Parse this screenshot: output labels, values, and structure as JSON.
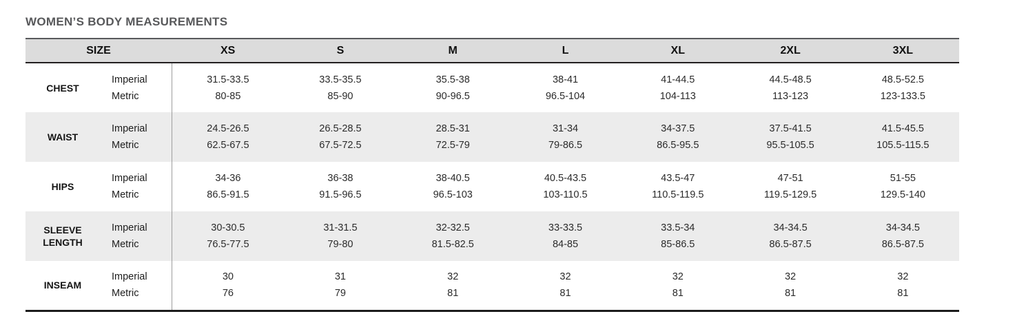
{
  "page": {
    "title": "WOMEN’S BODY MEASUREMENTS"
  },
  "colors": {
    "header_bg": "#dcdcdc",
    "stripe_bg": "#ececec",
    "border_top": "#58595b",
    "border_dark": "#231f20",
    "column_divider": "#9d9d9d",
    "title_text": "#58595b"
  },
  "table": {
    "size_header": "SIZE",
    "sizes": [
      "XS",
      "S",
      "M",
      "L",
      "XL",
      "2XL",
      "3XL"
    ],
    "unit_labels": [
      "Imperial",
      "Metric"
    ],
    "rows": [
      {
        "name": "CHEST",
        "imperial": [
          "31.5-33.5",
          "33.5-35.5",
          "35.5-38",
          "38-41",
          "41-44.5",
          "44.5-48.5",
          "48.5-52.5"
        ],
        "metric": [
          "80-85",
          "85-90",
          "90-96.5",
          "96.5-104",
          "104-113",
          "113-123",
          "123-133.5"
        ]
      },
      {
        "name": "WAIST",
        "imperial": [
          "24.5-26.5",
          "26.5-28.5",
          "28.5-31",
          "31-34",
          "34-37.5",
          "37.5-41.5",
          "41.5-45.5"
        ],
        "metric": [
          "62.5-67.5",
          "67.5-72.5",
          "72.5-79",
          "79-86.5",
          "86.5-95.5",
          "95.5-105.5",
          "105.5-115.5"
        ]
      },
      {
        "name": "HIPS",
        "imperial": [
          "34-36",
          "36-38",
          "38-40.5",
          "40.5-43.5",
          "43.5-47",
          "47-51",
          "51-55"
        ],
        "metric": [
          "86.5-91.5",
          "91.5-96.5",
          "96.5-103",
          "103-110.5",
          "110.5-119.5",
          "119.5-129.5",
          "129.5-140"
        ]
      },
      {
        "name": "SLEEVE LENGTH",
        "imperial": [
          "30-30.5",
          "31-31.5",
          "32-32.5",
          "33-33.5",
          "33.5-34",
          "34-34.5",
          "34-34.5"
        ],
        "metric": [
          "76.5-77.5",
          "79-80",
          "81.5-82.5",
          "84-85",
          "85-86.5",
          "86.5-87.5",
          "86.5-87.5"
        ]
      },
      {
        "name": "INSEAM",
        "imperial": [
          "30",
          "31",
          "32",
          "32",
          "32",
          "32",
          "32"
        ],
        "metric": [
          "76",
          "79",
          "81",
          "81",
          "81",
          "81",
          "81"
        ]
      }
    ]
  }
}
